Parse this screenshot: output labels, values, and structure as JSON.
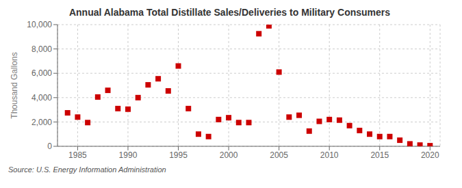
{
  "chart_data": {
    "type": "scatter",
    "title": "Annual Alabama Total Distillate Sales/Deliveries to Military Consumers",
    "ylabel": "Thousand Gallons",
    "annotations": [
      "Source: U.S. Energy Information Administration"
    ],
    "x": [
      1984,
      1985,
      1986,
      1987,
      1988,
      1989,
      1990,
      1991,
      1992,
      1993,
      1994,
      1995,
      1996,
      1997,
      1998,
      1999,
      2000,
      2001,
      2002,
      2003,
      2004,
      2005,
      2006,
      2007,
      2008,
      2009,
      2010,
      2011,
      2012,
      2013,
      2014,
      2015,
      2016,
      2017,
      2018,
      2019,
      2020
    ],
    "values": [
      2750,
      2400,
      1950,
      4050,
      4600,
      3100,
      3050,
      4000,
      5050,
      5550,
      4550,
      6600,
      3100,
      1000,
      800,
      2200,
      2350,
      1950,
      1950,
      9250,
      9900,
      6100,
      2400,
      2550,
      1250,
      2050,
      2200,
      2150,
      1700,
      1300,
      1000,
      800,
      800,
      500,
      200,
      100,
      50
    ],
    "color": "#cc0000",
    "marker": "square",
    "xlim": [
      1983,
      2021
    ],
    "xticks": [
      1985,
      1990,
      1995,
      2000,
      2005,
      2010,
      2015,
      2020
    ],
    "ylim": [
      0,
      10000
    ],
    "yticks": [
      0,
      {
        "value": 2000,
        "label": "2,000"
      },
      {
        "value": 4000,
        "label": "4,000"
      },
      {
        "value": 6000,
        "label": "6,000"
      },
      {
        "value": 8000,
        "label": "8,000"
      },
      {
        "value": 10000,
        "label": "10,000"
      }
    ],
    "grid": true
  }
}
